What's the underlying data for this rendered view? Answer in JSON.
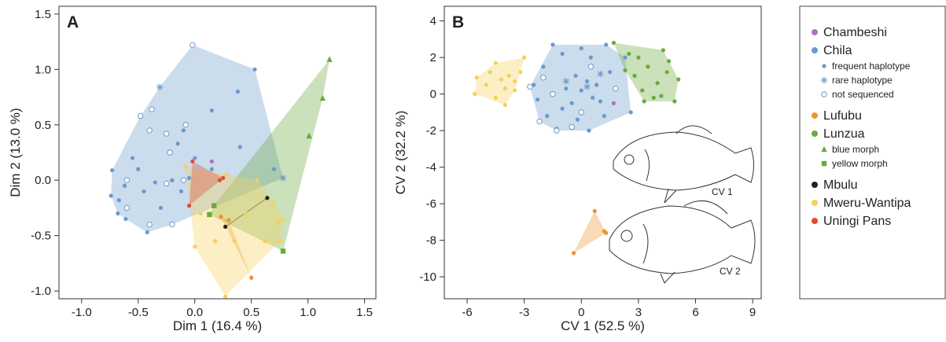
{
  "chart_data": [
    {
      "type": "scatter",
      "title": "A",
      "x_label": "Dim 1 (16.4 %)",
      "y_label": "Dim 2 (13.0 %)",
      "xlim": [
        -1.2,
        1.6
      ],
      "ylim": [
        -1.07,
        1.57
      ],
      "xticks": [
        {
          "value": -1,
          "label": "-1.0"
        },
        -0.5,
        {
          "value": 0,
          "label": "0.0"
        },
        0.5,
        {
          "value": 1,
          "label": "1.0"
        },
        1.5
      ],
      "yticks": [
        {
          "value": -1,
          "label": "-1.0"
        },
        -0.5,
        {
          "value": 0,
          "label": "0.0"
        },
        0.5,
        {
          "value": 1,
          "label": "1.0"
        },
        1.5
      ],
      "series": [
        {
          "name": "Chambeshi",
          "color": "#b36fc1",
          "marker": "dot",
          "x": [
            0.15
          ],
          "y": [
            0.17
          ]
        },
        {
          "name": "Chila",
          "color": "#6b9acb",
          "subseries": [
            {
              "name": "frequent haplotype",
              "marker": "dot",
              "x": [
                -0.73,
                -0.74,
                -0.67,
                -0.68,
                -0.61,
                -0.42,
                -0.3,
                -0.45,
                -0.5,
                -0.2,
                -0.05,
                0.4,
                0.53,
                0.38,
                0.15,
                -0.1,
                0.0,
                -0.55,
                -0.62,
                -0.35,
                0.7,
                -0.12,
                0.15,
                -0.15
              ],
              "y": [
                0.09,
                -0.14,
                -0.18,
                -0.3,
                -0.35,
                -0.47,
                -0.25,
                -0.1,
                0.1,
                0.0,
                0.02,
                0.3,
                1.0,
                0.8,
                0.63,
                0.45,
                0.2,
                0.2,
                -0.05,
                -0.02,
                0.1,
                -0.1,
                0.1,
                0.33
              ]
            },
            {
              "name": "rare haplotype",
              "marker": "star",
              "x": [
                -0.31,
                0.78
              ],
              "y": [
                0.84,
                0.02
              ]
            },
            {
              "name": "not sequenced",
              "marker": "open",
              "x": [
                -0.02,
                -0.48,
                -0.38,
                -0.4,
                -0.25,
                -0.22,
                -0.08,
                -0.6,
                -0.4,
                -0.1,
                -0.25,
                -0.6,
                -0.2
              ],
              "y": [
                1.22,
                0.58,
                0.64,
                0.45,
                0.42,
                0.25,
                0.5,
                -0.25,
                -0.4,
                0.0,
                -0.03,
                0.0,
                -0.4
              ]
            }
          ]
        },
        {
          "name": "Lufubu",
          "color": "#f0922e",
          "marker": "dot",
          "x": [
            0.23,
            0.5,
            0.3
          ],
          "y": [
            -0.33,
            -0.88,
            -0.36
          ]
        },
        {
          "name": "Lunzua",
          "color": "#6aaa3c",
          "subseries": [
            {
              "name": "blue morph",
              "marker": "triangle",
              "x": [
                1.19,
                1.13,
                1.01
              ],
              "y": [
                1.09,
                0.74,
                0.4
              ]
            },
            {
              "name": "yellow morph",
              "marker": "square",
              "x": [
                0.17,
                0.13,
                0.78
              ],
              "y": [
                -0.23,
                -0.31,
                -0.64
              ]
            }
          ]
        },
        {
          "name": "Mbulu",
          "color": "#222222",
          "marker": "dot",
          "x": [
            0.27,
            0.64
          ],
          "y": [
            -0.42,
            -0.16
          ]
        },
        {
          "name": "Mweru-Wantipa",
          "color": "#f5d05a",
          "marker": "dot",
          "x": [
            -0.08,
            0.28,
            0.55,
            0.7,
            0.73,
            0.78,
            0.75,
            0.62,
            0.35,
            0.27,
            0.0,
            0.05,
            0.18,
            0.45
          ],
          "y": [
            0.12,
            0.05,
            0.0,
            -0.2,
            -0.38,
            -0.35,
            -0.55,
            -0.55,
            -0.55,
            -1.05,
            -0.6,
            -0.3,
            -0.55,
            -0.3
          ]
        },
        {
          "name": "Uningi Pans",
          "color": "#e04a35",
          "marker": "dot",
          "x": [
            -0.02,
            -0.05,
            0.25,
            0.22
          ],
          "y": [
            0.17,
            -0.23,
            0.02,
            0.0
          ]
        }
      ]
    },
    {
      "type": "scatter",
      "title": "B",
      "x_label": "CV 1 (52.5 %)",
      "y_label": "CV 2 (32.2 %)",
      "xlim": [
        -7.2,
        9.45
      ],
      "ylim": [
        -11.2,
        4.8
      ],
      "xticks": [
        -6,
        -3,
        0,
        3,
        6,
        9
      ],
      "yticks": [
        -10,
        -8,
        -6,
        -4,
        -2,
        0,
        2,
        4
      ],
      "annotations": [
        "CV 1",
        "CV 2"
      ],
      "series": [
        {
          "color": "#b36fc1",
          "marker": "dot",
          "x": [
            1.7
          ],
          "y": [
            -0.5
          ]
        },
        {
          "color": "#6b9acb",
          "subseries": [
            {
              "marker": "dot",
              "x": [
                -2.5,
                -2,
                -1.5,
                -1,
                0,
                0.5,
                1.3,
                2.3,
                1.5,
                0.8,
                0,
                -0.5,
                -1,
                -1.3,
                -0.2,
                0.4,
                1.0,
                2.6,
                -1.8,
                -2.3,
                0.3,
                -0.8,
                1.2,
                0.6,
                -0.3
              ],
              "y": [
                0.5,
                1.5,
                2.7,
                2.2,
                2.5,
                2.0,
                2.7,
                2.0,
                1.2,
                0.5,
                0.2,
                -0.5,
                -0.8,
                -1.9,
                -1.4,
                -2.0,
                -0.4,
                -1.0,
                -1.2,
                -0.3,
                0.7,
                0.3,
                -1.2,
                -0.2,
                1.0
              ]
            },
            {
              "marker": "star",
              "x": [
                -0.8,
                1.0,
                0.3
              ],
              "y": [
                0.7,
                1.1,
                0.4
              ]
            },
            {
              "marker": "open",
              "x": [
                -2.7,
                -2.2,
                -1.3,
                -0.5,
                0.5,
                -1.5,
                1.8,
                -2.0,
                0.0
              ],
              "y": [
                0.4,
                -1.5,
                -2.0,
                -1.8,
                1.5,
                0.0,
                0.3,
                0.9,
                -1.0
              ]
            }
          ]
        },
        {
          "color": "#f0922e",
          "marker": "dot",
          "x": [
            -0.4,
            0.7,
            1.3,
            1.2
          ],
          "y": [
            -8.7,
            -6.4,
            -7.6,
            -7.5
          ]
        },
        {
          "color": "#6aaa3c",
          "marker": "dot",
          "x": [
            1.7,
            4.3,
            5.1,
            4.9,
            3.3,
            2.3,
            3.5,
            4.6,
            4.0,
            3.0,
            2.8,
            4.5,
            3.8,
            3.2,
            4.2,
            2.5
          ],
          "y": [
            2.8,
            2.4,
            0.8,
            -0.4,
            -0.4,
            1.3,
            1.5,
            1.8,
            0.6,
            2.0,
            1.0,
            1.2,
            -0.2,
            0.2,
            -0.1,
            2.2
          ]
        },
        {
          "color": "#f5d05a",
          "marker": "dot",
          "x": [
            -5.5,
            -5.6,
            -4.5,
            -3,
            -3.2,
            -3.5,
            -4,
            -4.5,
            -5,
            -4.2,
            -3.8,
            -4.8,
            -4.0,
            -3.5
          ],
          "y": [
            0.9,
            0,
            1.7,
            2,
            1.2,
            0.2,
            -0.6,
            -0.2,
            0.5,
            0.8,
            1.0,
            1.2,
            0.3,
            0.7
          ]
        }
      ]
    }
  ]
}
